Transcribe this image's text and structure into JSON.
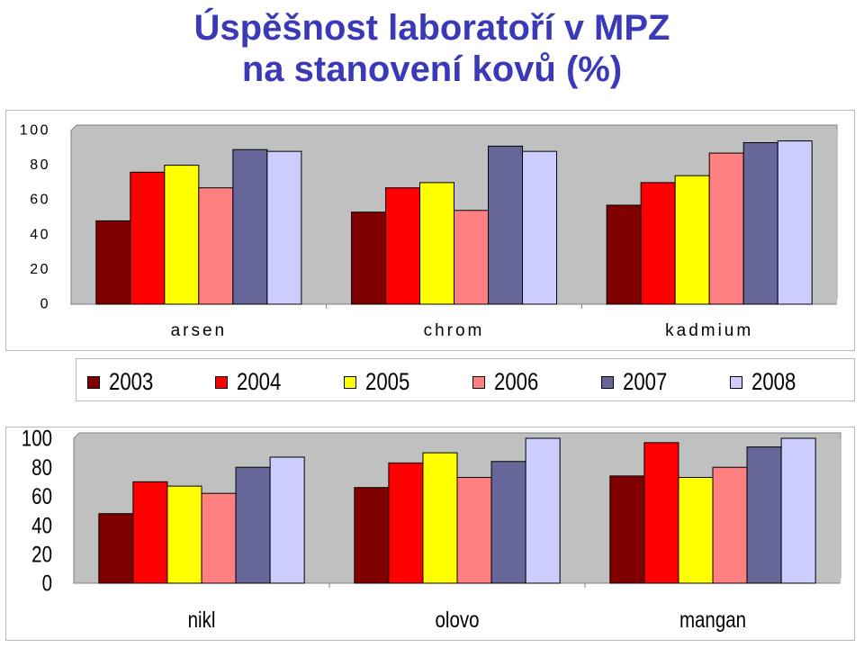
{
  "title": {
    "line1": "Úspěšnost laboratoří v MPZ",
    "line2": "na stanovení kovů (%)"
  },
  "colors": {
    "title": "#3a3ab8",
    "plot_bg": "#c0c0c0",
    "series": [
      "#800000",
      "#ff0000",
      "#ffff00",
      "#ff8080",
      "#666699",
      "#ccccff"
    ]
  },
  "legend": {
    "placement": "between-charts",
    "entries": [
      "2003",
      "2004",
      "2005",
      "2006",
      "2007",
      "2008"
    ]
  },
  "chart_data": [
    {
      "type": "bar",
      "categories": [
        "arsen",
        "chrom",
        "kadmium"
      ],
      "ylim": [
        0,
        100
      ],
      "yticks": [
        "0",
        "20",
        "40",
        "60",
        "80",
        "100"
      ],
      "grid": false,
      "series": [
        {
          "name": "2003",
          "values": [
            48,
            53,
            57
          ]
        },
        {
          "name": "2004",
          "values": [
            76,
            67,
            70
          ]
        },
        {
          "name": "2005",
          "values": [
            80,
            70,
            74
          ]
        },
        {
          "name": "2006",
          "values": [
            67,
            54,
            87
          ]
        },
        {
          "name": "2007",
          "values": [
            89,
            91,
            93
          ]
        },
        {
          "name": "2008",
          "values": [
            88,
            88,
            94
          ]
        }
      ]
    },
    {
      "type": "bar",
      "categories": [
        "nikl",
        "olovo",
        "mangan"
      ],
      "ylim": [
        0,
        100
      ],
      "yticks": [
        "0",
        "20",
        "40",
        "60",
        "80",
        "100"
      ],
      "grid": false,
      "series": [
        {
          "name": "2003",
          "values": [
            48,
            66,
            74
          ]
        },
        {
          "name": "2004",
          "values": [
            70,
            83,
            97
          ]
        },
        {
          "name": "2005",
          "values": [
            67,
            90,
            73
          ]
        },
        {
          "name": "2006",
          "values": [
            62,
            73,
            80
          ]
        },
        {
          "name": "2007",
          "values": [
            80,
            84,
            94
          ]
        },
        {
          "name": "2008",
          "values": [
            87,
            100,
            100
          ]
        }
      ]
    }
  ]
}
